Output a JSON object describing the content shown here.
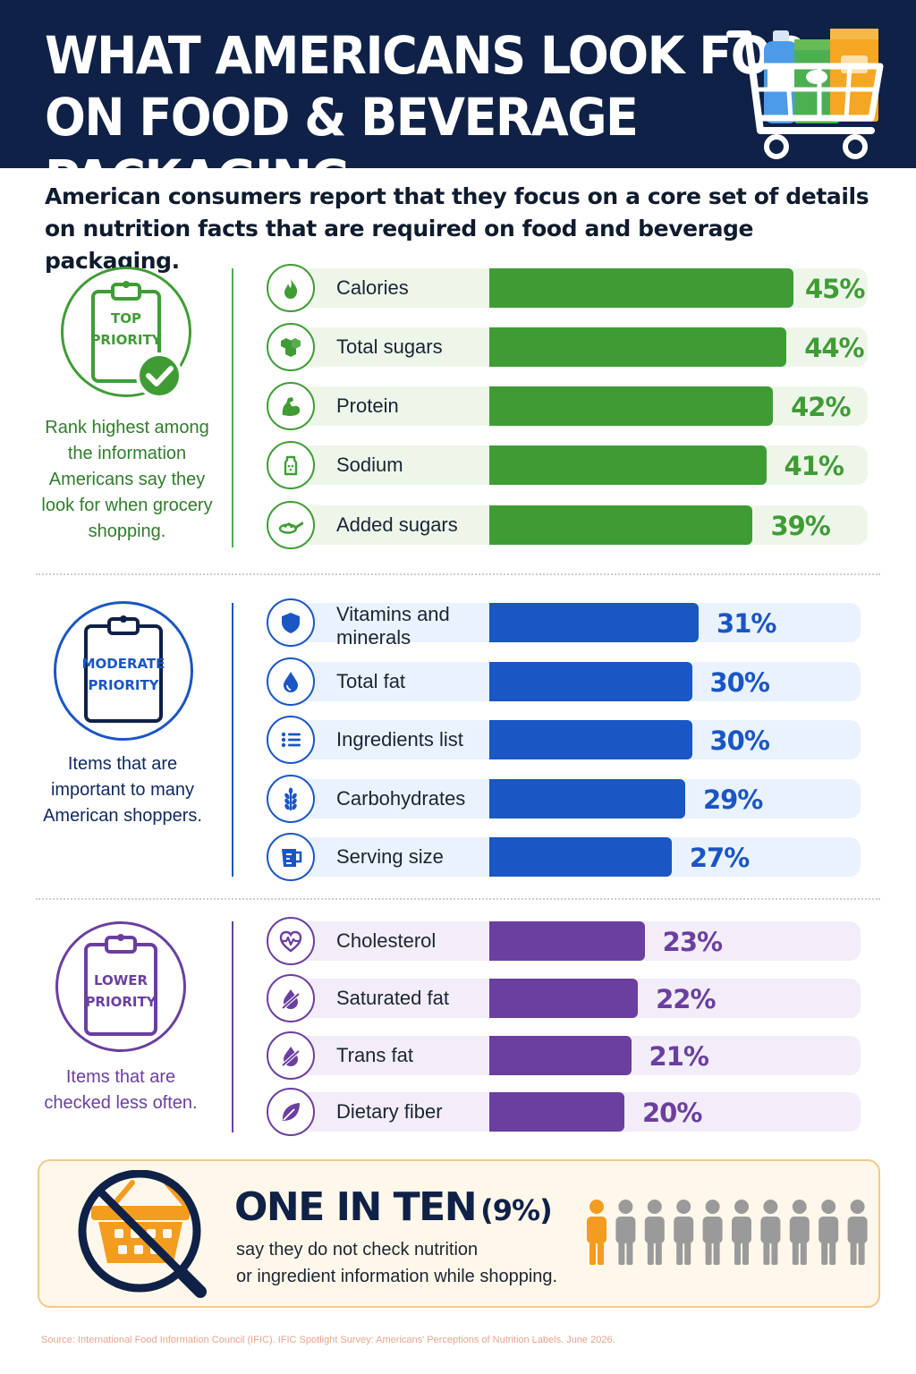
{
  "header": {
    "title_line1": "WHAT AMERICANS LOOK FOR",
    "title_line2": "ON FOOD & BEVERAGE PACKAGING",
    "icon": "shopping-cart-icon"
  },
  "intro": "American consumers report that they focus on a core set of details on nutrition facts that are required on food and beverage packaging.",
  "sections": [
    {
      "badge_line1": "TOP",
      "badge_line2": "PRIORITY",
      "description": "Rank highest among the information Americans say they look for when grocery shopping.",
      "color": "#3f9c35",
      "items": [
        {
          "label": "Calories",
          "value": "45%",
          "icon": "flame-icon"
        },
        {
          "label": "Total sugars",
          "value": "44%",
          "icon": "sugar-cubes-icon"
        },
        {
          "label": "Protein",
          "value": "42%",
          "icon": "flexed-arm-icon"
        },
        {
          "label": "Sodium",
          "value": "41%",
          "icon": "salt-shaker-icon"
        },
        {
          "label": "Added sugars",
          "value": "39%",
          "icon": "sugar-spoon-icon"
        }
      ]
    },
    {
      "badge_line1": "MODERATE",
      "badge_line2": "PRIORITY",
      "description": "Items that are important to many American shoppers.",
      "color": "#1a56c4",
      "items": [
        {
          "label": "Vitamins and minerals",
          "value": "31%",
          "icon": "shield-icon"
        },
        {
          "label": "Total fat",
          "value": "30%",
          "icon": "droplet-icon"
        },
        {
          "label": "Ingredients list",
          "value": "30%",
          "icon": "list-icon"
        },
        {
          "label": "Carbohydrates",
          "value": "29%",
          "icon": "wheat-icon"
        },
        {
          "label": "Serving size",
          "value": "27%",
          "icon": "measuring-cup-icon"
        }
      ]
    },
    {
      "badge_line1": "LOWER",
      "badge_line2": "PRIORITY",
      "description": "Items that are checked less often.",
      "color": "#6a3fa0",
      "items": [
        {
          "label": "Cholesterol",
          "value": "23%",
          "icon": "heartbeat-icon"
        },
        {
          "label": "Saturated fat",
          "value": "22%",
          "icon": "droplet-slash-icon"
        },
        {
          "label": "Trans fat",
          "value": "21%",
          "icon": "droplet-slash-icon"
        },
        {
          "label": "Dietary fiber",
          "value": "20%",
          "icon": "leaf-icon"
        }
      ]
    }
  ],
  "callout": {
    "headline": "ONE IN TEN",
    "headline_pct": "(9%)",
    "text_line1": "say they do not check nutrition",
    "text_line2": "or ingredient information while shopping.",
    "icon": "no-basket-magnifier-icon",
    "people_highlighted": 1,
    "people_total": 10,
    "highlight_color": "#f39c1f"
  },
  "source": "Source: International Food Information Council (IFIC). IFIC Spotlight Survey: Americans' Perceptions of Nutrition Labels. June 2026.",
  "chart_data": {
    "type": "bar",
    "orientation": "horizontal",
    "categories": [
      "Calories",
      "Total sugars",
      "Protein",
      "Sodium",
      "Added sugars",
      "Vitamins and minerals",
      "Total fat",
      "Ingredients list",
      "Carbohydrates",
      "Serving size",
      "Cholesterol",
      "Saturated fat",
      "Trans fat",
      "Dietary fiber"
    ],
    "values": [
      45,
      44,
      42,
      41,
      39,
      31,
      30,
      30,
      29,
      27,
      23,
      22,
      21,
      20
    ],
    "unit": "%",
    "groups": [
      {
        "name": "TOP PRIORITY",
        "range": [
          0,
          4
        ]
      },
      {
        "name": "MODERATE PRIORITY",
        "range": [
          5,
          9
        ]
      },
      {
        "name": "LOWER PRIORITY",
        "range": [
          10,
          13
        ]
      }
    ],
    "grid": false,
    "legend": "none"
  }
}
